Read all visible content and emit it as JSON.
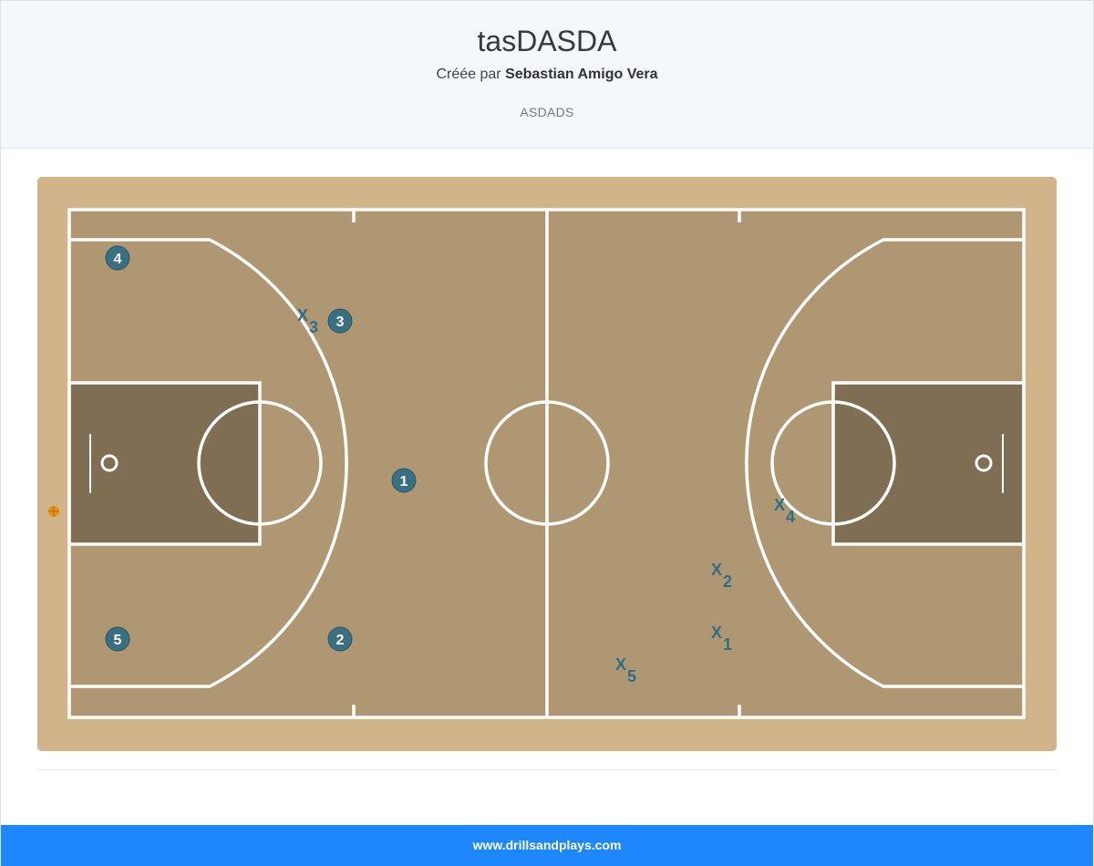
{
  "header": {
    "title": "tasDASDA",
    "created_by_prefix": "Créée par",
    "author": "Sebastian Amigo Vera",
    "description": "ASDADS"
  },
  "court": {
    "offense_players": [
      "4",
      "3",
      "1",
      "5",
      "2"
    ],
    "defense_marker": "X",
    "defense_players": [
      "3",
      "4",
      "2",
      "1",
      "5"
    ],
    "colors": {
      "player": "#3a6f82",
      "floor": "#b09774",
      "paint": "#7f6d54",
      "lines": "#ffffff",
      "ball": "#e8921a"
    }
  },
  "footer": {
    "site": "www.drillsandplays.com"
  }
}
